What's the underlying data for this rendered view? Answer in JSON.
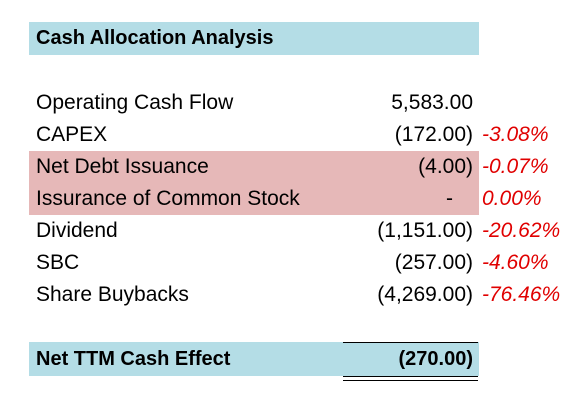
{
  "sheet": {
    "title": "Cash Allocation Analysis",
    "colors": {
      "title_band": "#b4dde6",
      "highlight_rows": "#e6b8b8",
      "percent_text": "#e00000"
    },
    "rows": [
      {
        "label": "Operating Cash Flow",
        "value": "5,583.00",
        "pct": "",
        "highlighted": false
      },
      {
        "label": "CAPEX",
        "value": "(172.00)",
        "pct": "-3.08%",
        "highlighted": false
      },
      {
        "label": "Net Debt Issuance",
        "value": "(4.00)",
        "pct": "-0.07%",
        "highlighted": true
      },
      {
        "label": "Issurance of Common Stock",
        "value": "-",
        "pct": "0.00%",
        "highlighted": true
      },
      {
        "label": "Dividend",
        "value": "(1,151.00)",
        "pct": "-20.62%",
        "highlighted": false
      },
      {
        "label": "SBC",
        "value": "(257.00)",
        "pct": "-4.60%",
        "highlighted": false
      },
      {
        "label": "Share Buybacks",
        "value": "(4,269.00)",
        "pct": "-76.46%",
        "highlighted": false
      }
    ],
    "total": {
      "label": "Net TTM Cash Effect",
      "value": "(270.00)"
    }
  }
}
